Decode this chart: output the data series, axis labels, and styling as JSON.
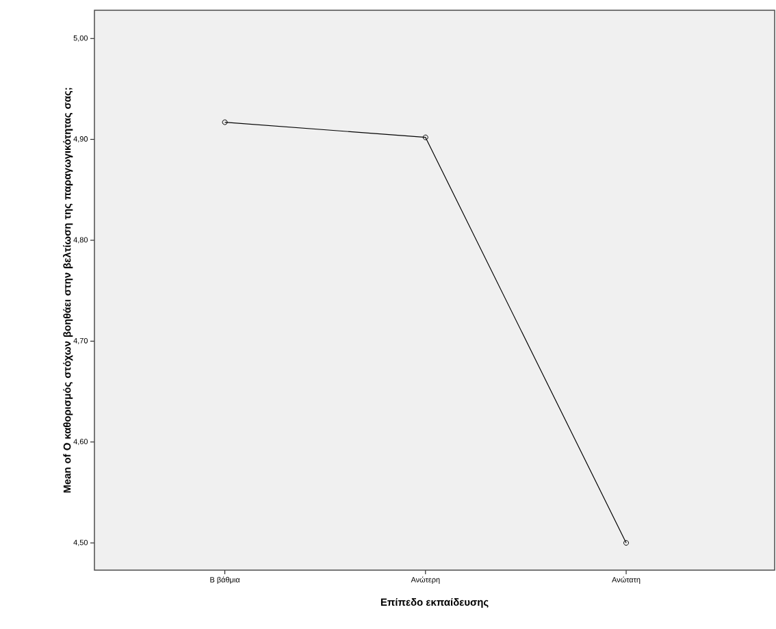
{
  "chart_data": {
    "type": "line",
    "xlabel": "Επίπεδο εκπαίδευσης",
    "ylabel": "Mean of Ο καθορισμός στόχων βοηθάει στην βελτίωση της παραγωγικότητας σας;",
    "categories": [
      "Β βάθμια",
      "Ανώτερη",
      "Ανώτατη"
    ],
    "values": [
      4.917,
      4.902,
      4.5
    ],
    "color": "#000000",
    "marker": "circle",
    "line_style": "solid",
    "grid": false,
    "ylim": [
      4.473,
      5.028
    ],
    "yticks": [
      {
        "value": 4.5,
        "label": "4,50"
      },
      {
        "value": 4.6,
        "label": "4,60"
      },
      {
        "value": 4.7,
        "label": "4,70"
      },
      {
        "value": 4.8,
        "label": "4,80"
      },
      {
        "value": 4.9,
        "label": "4,90"
      },
      {
        "value": 5.0,
        "label": "5,00"
      }
    ]
  }
}
